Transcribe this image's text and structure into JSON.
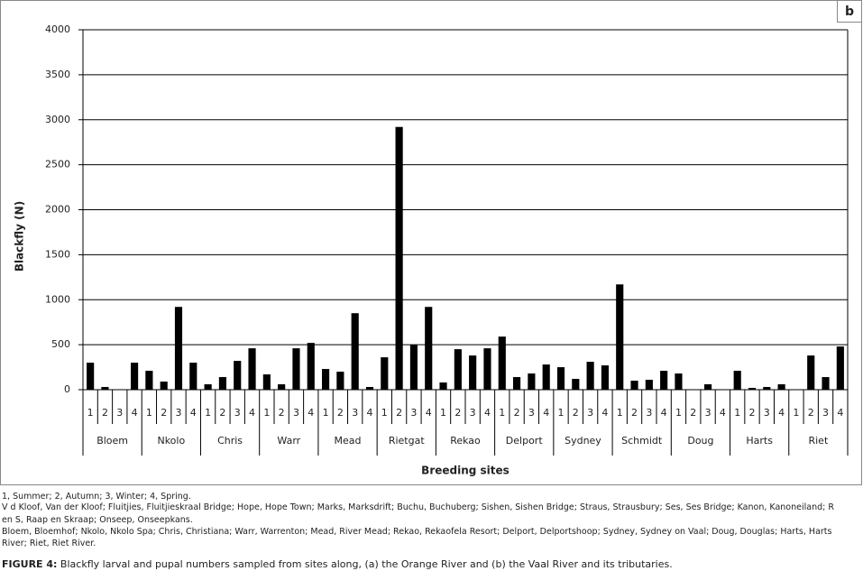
{
  "chart_data": {
    "type": "bar",
    "panel_label": "b",
    "x_label": "Breeding sites",
    "y_label": "Blackfly (N)",
    "groups": [
      "Bloem",
      "Nkolo",
      "Chris",
      "Warr",
      "Mead",
      "Rietgat",
      "Rekao",
      "Delport",
      "Sydney",
      "Schmidt",
      "Doug",
      "Harts",
      "Riet"
    ],
    "categories": [
      "1",
      "2",
      "3",
      "4",
      "1",
      "2",
      "3",
      "4",
      "1",
      "2",
      "3",
      "4",
      "1",
      "2",
      "3",
      "4",
      "1",
      "2",
      "3",
      "4",
      "1",
      "2",
      "3",
      "4",
      "1",
      "2",
      "3",
      "4",
      "1",
      "2",
      "3",
      "4",
      "1",
      "2",
      "3",
      "4",
      "1",
      "2",
      "3",
      "4",
      "1",
      "2",
      "3",
      "4",
      "1",
      "2",
      "3",
      "4",
      "1",
      "2",
      "3",
      "4"
    ],
    "values": [
      300,
      30,
      0,
      300,
      210,
      90,
      920,
      300,
      60,
      140,
      320,
      460,
      170,
      60,
      460,
      520,
      230,
      200,
      850,
      30,
      360,
      2920,
      500,
      920,
      80,
      450,
      380,
      460,
      590,
      140,
      180,
      280,
      250,
      120,
      310,
      270,
      1170,
      100,
      110,
      210,
      180,
      0,
      60,
      0,
      210,
      20,
      30,
      60,
      0,
      380,
      140,
      480
    ],
    "color": "#000000",
    "ylim": [
      0,
      4000
    ],
    "yticks": [
      0,
      500,
      1000,
      1500,
      2000,
      2500,
      3000,
      3500,
      4000
    ],
    "grid": true
  },
  "notes": [
    "1, Summer; 2, Autumn; 3, Winter; 4, Spring.",
    "V d Kloof, Van der Kloof; Fluitjies, Fluitjieskraal Bridge; Hope, Hope Town; Marks, Marksdrift; Buchu, Buchuberg; Sishen, Sishen Bridge; Straus, Strausbury; Ses, Ses Bridge; Kanon, Kanoneiland; R",
    "en S, Raap en Skraap; Onseep, Onseepkans.",
    "Bloem, Bloemhof; Nkolo, Nkolo Spa; Chris, Christiana; Warr, Warrenton; Mead, River Mead; Rekao, Rekaofela Resort; Delport, Delportshoop; Sydney, Sydney on Vaal; Doug, Douglas; Harts, Harts",
    "River; Riet, Riet River."
  ],
  "caption": {
    "label": "FIGURE 4:",
    "text": " Blackfly larval and pupal numbers sampled from sites along, (a) the Orange River and (b) the Vaal River and its tributaries."
  }
}
